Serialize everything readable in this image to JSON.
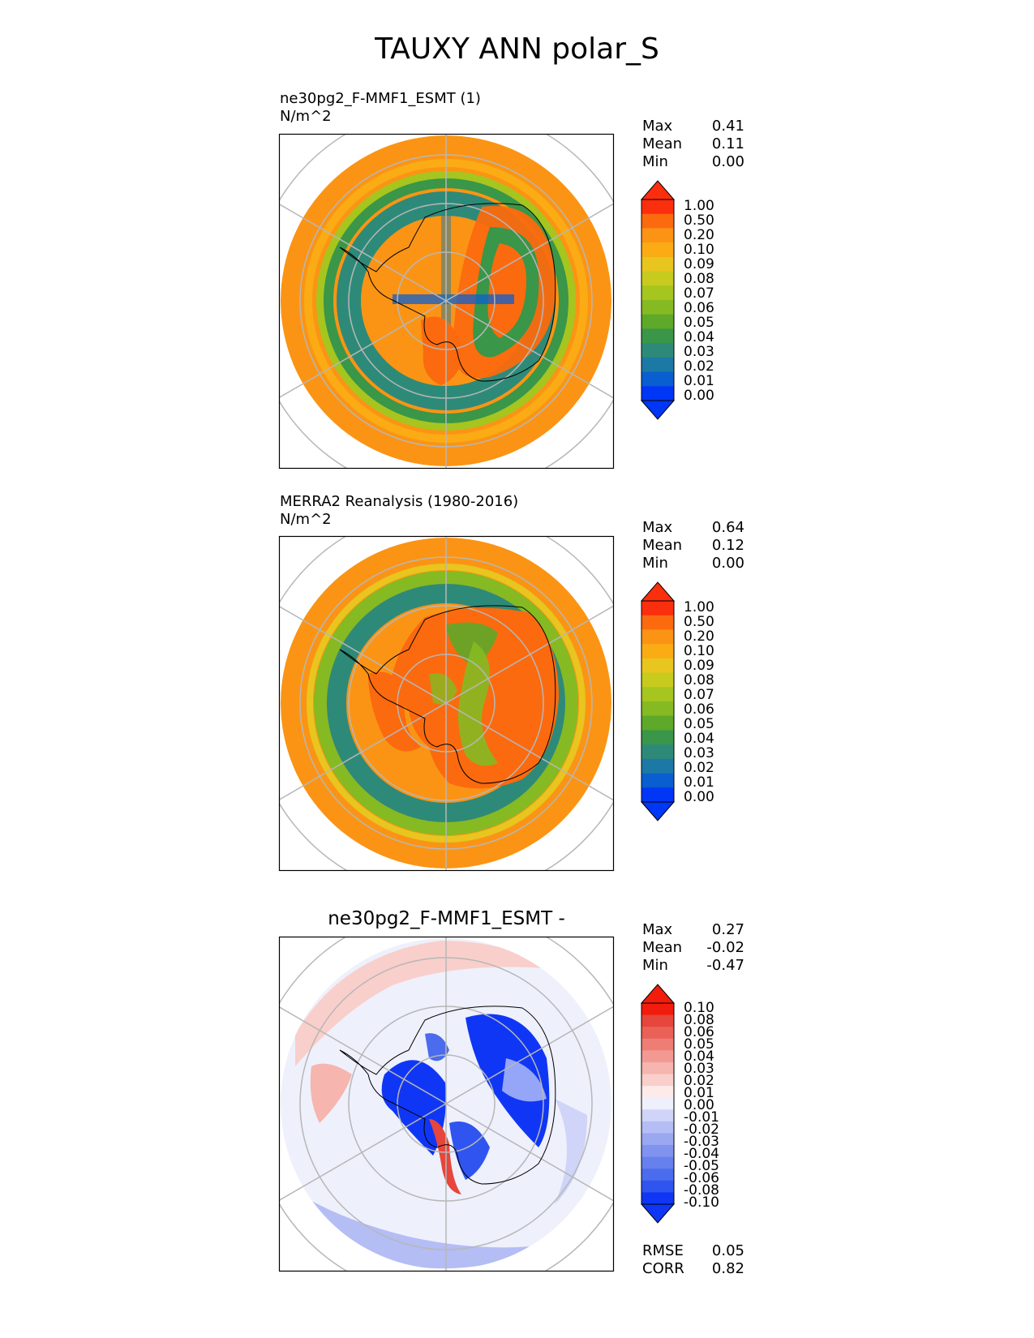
{
  "figure": {
    "title": "TAUXY ANN polar_S"
  },
  "panels": [
    {
      "id": "test",
      "title_lines": [
        "ne30pg2_F-MMF1_ESMT (1)",
        "N/m^2"
      ],
      "stats": [
        {
          "label": "Max",
          "value": "0.41"
        },
        {
          "label": "Mean",
          "value": "0.11"
        },
        {
          "label": "Min",
          "value": "0.00"
        }
      ],
      "colorbar_labels": [
        "1.00",
        "0.50",
        "0.20",
        "0.10",
        "0.09",
        "0.08",
        "0.07",
        "0.06",
        "0.05",
        "0.04",
        "0.03",
        "0.02",
        "0.01",
        "0.00"
      ]
    },
    {
      "id": "reference",
      "title_lines": [
        "MERRA2 Reanalysis (1980-2016)",
        "N/m^2"
      ],
      "stats": [
        {
          "label": "Max",
          "value": "0.64"
        },
        {
          "label": "Mean",
          "value": "0.12"
        },
        {
          "label": "Min",
          "value": "0.00"
        }
      ],
      "colorbar_labels": [
        "1.00",
        "0.50",
        "0.20",
        "0.10",
        "0.09",
        "0.08",
        "0.07",
        "0.06",
        "0.05",
        "0.04",
        "0.03",
        "0.02",
        "0.01",
        "0.00"
      ]
    },
    {
      "id": "difference",
      "title": "ne30pg2_F-MMF1_ESMT -",
      "stats": [
        {
          "label": "Max",
          "value": "0.27"
        },
        {
          "label": "Mean",
          "value": "-0.02"
        },
        {
          "label": "Min",
          "value": "-0.47"
        }
      ],
      "colorbar_labels": [
        "0.10",
        "0.08",
        "0.06",
        "0.05",
        "0.04",
        "0.03",
        "0.02",
        "0.01",
        "0.00",
        "-0.01",
        "-0.02",
        "-0.03",
        "-0.04",
        "-0.05",
        "-0.06",
        "-0.08",
        "-0.10"
      ],
      "metrics": [
        {
          "label": "RMSE",
          "value": "0.05"
        },
        {
          "label": "CORR",
          "value": "0.82"
        }
      ]
    }
  ],
  "colors": {
    "wind_ramp": [
      "#0036f5",
      "#0a5fd0",
      "#1c79a6",
      "#2e8a78",
      "#3a9648",
      "#5ea82a",
      "#85ba22",
      "#a6c51f",
      "#c6cb1e",
      "#e8c51f",
      "#fbab14",
      "#fb9414",
      "#fb6a0e",
      "#fb2e0e"
    ],
    "diff_ramp": [
      "#1036f5",
      "#2f54f0",
      "#4a6ced",
      "#6680ee",
      "#8093ef",
      "#9aa7f1",
      "#b4bdf4",
      "#cfd4f8",
      "#eef0fc",
      "#fcebe9",
      "#f9cfcb",
      "#f6b5ae",
      "#f29a92",
      "#ee7e75",
      "#ea6257",
      "#e6463b",
      "#f21c0d"
    ]
  }
}
